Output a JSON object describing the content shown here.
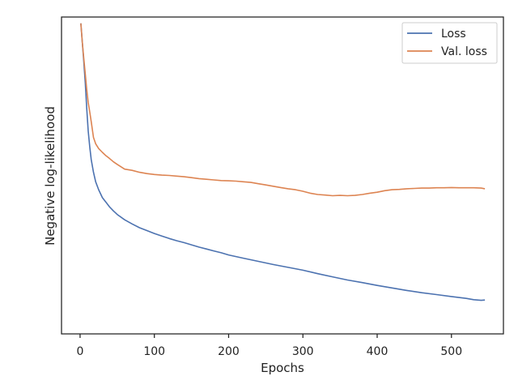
{
  "chart_data": {
    "type": "line",
    "title": "",
    "xlabel": "Epochs",
    "ylabel": "Negative log-likelihood",
    "xlim": [
      -25,
      570
    ],
    "ylim": [
      0,
      1
    ],
    "xticks": [
      0,
      100,
      200,
      300,
      400,
      500
    ],
    "xtick_labels": [
      "0",
      "100",
      "200",
      "300",
      "400",
      "500"
    ],
    "yticks_visible": false,
    "grid": false,
    "legend": {
      "placement": "top-right"
    },
    "series": [
      {
        "name": "Loss",
        "color": "#4c72b0",
        "x": [
          1,
          3,
          5,
          7,
          9,
          11,
          13,
          15,
          18,
          21,
          25,
          30,
          35,
          40,
          45,
          50,
          60,
          70,
          80,
          90,
          100,
          110,
          120,
          130,
          140,
          150,
          160,
          170,
          180,
          190,
          200,
          220,
          240,
          260,
          280,
          300,
          320,
          340,
          360,
          380,
          400,
          420,
          440,
          460,
          480,
          500,
          520,
          530,
          540,
          545
        ],
        "y": [
          0.98,
          0.92,
          0.86,
          0.79,
          0.71,
          0.64,
          0.59,
          0.55,
          0.51,
          0.48,
          0.455,
          0.43,
          0.415,
          0.4,
          0.388,
          0.377,
          0.36,
          0.347,
          0.335,
          0.326,
          0.317,
          0.309,
          0.301,
          0.294,
          0.288,
          0.281,
          0.274,
          0.268,
          0.262,
          0.256,
          0.249,
          0.239,
          0.229,
          0.219,
          0.21,
          0.201,
          0.19,
          0.18,
          0.17,
          0.162,
          0.153,
          0.145,
          0.137,
          0.13,
          0.124,
          0.118,
          0.112,
          0.108,
          0.106,
          0.107
        ]
      },
      {
        "name": "Val. loss",
        "color": "#dd8452",
        "x": [
          1,
          3,
          5,
          7,
          9,
          11,
          13,
          15,
          18,
          21,
          25,
          30,
          35,
          40,
          45,
          50,
          60,
          70,
          80,
          90,
          100,
          110,
          120,
          130,
          140,
          150,
          160,
          170,
          180,
          190,
          200,
          210,
          220,
          230,
          240,
          250,
          260,
          270,
          280,
          290,
          300,
          310,
          320,
          330,
          340,
          350,
          360,
          370,
          380,
          390,
          400,
          410,
          420,
          430,
          440,
          450,
          460,
          470,
          480,
          490,
          500,
          510,
          520,
          530,
          540,
          545
        ],
        "y": [
          0.98,
          0.92,
          0.87,
          0.82,
          0.77,
          0.73,
          0.7,
          0.67,
          0.62,
          0.6,
          0.585,
          0.573,
          0.562,
          0.553,
          0.543,
          0.535,
          0.52,
          0.516,
          0.51,
          0.506,
          0.503,
          0.501,
          0.5,
          0.498,
          0.496,
          0.493,
          0.49,
          0.488,
          0.486,
          0.484,
          0.483,
          0.482,
          0.48,
          0.478,
          0.474,
          0.47,
          0.466,
          0.462,
          0.458,
          0.455,
          0.45,
          0.444,
          0.44,
          0.438,
          0.436,
          0.437,
          0.436,
          0.437,
          0.44,
          0.444,
          0.447,
          0.452,
          0.455,
          0.456,
          0.458,
          0.459,
          0.46,
          0.46,
          0.461,
          0.461,
          0.462,
          0.461,
          0.461,
          0.461,
          0.46,
          0.458
        ]
      }
    ]
  }
}
